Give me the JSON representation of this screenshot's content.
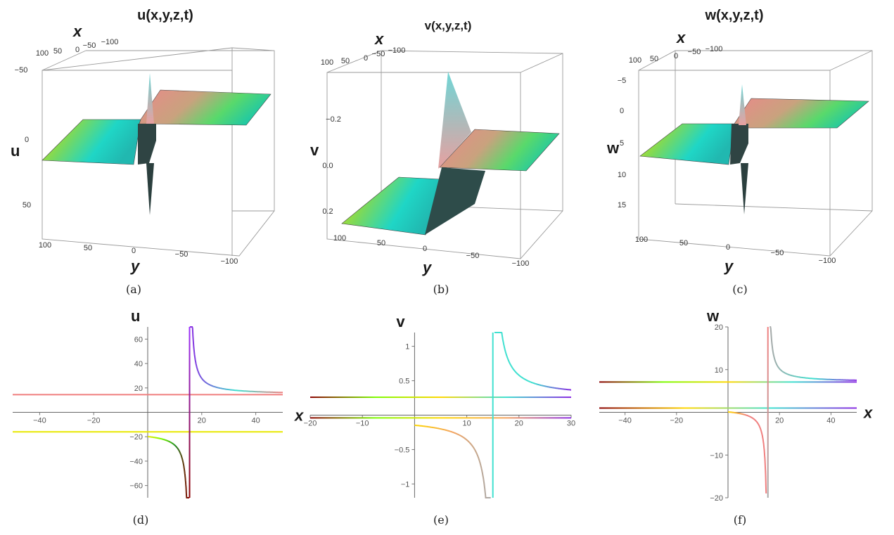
{
  "chart_data": [
    {
      "type": "surface",
      "panel": "(a)",
      "title": "u(x,y,z,t)",
      "xlabel": "x",
      "ylabel": "y",
      "zlabel": "u",
      "x_ticks": [
        "100",
        "50",
        "0",
        "−50",
        "−100"
      ],
      "y_ticks": [
        "100",
        "50",
        "0",
        "−50",
        "−100"
      ],
      "z_ticks": [
        "−50",
        "0",
        "50"
      ],
      "zlim": [
        -60,
        70
      ]
    },
    {
      "type": "surface",
      "panel": "(b)",
      "title": "v(x,y,z,t)",
      "xlabel": "x",
      "ylabel": "y",
      "zlabel": "v",
      "x_ticks": [
        "100",
        "50",
        "0",
        "−50",
        "−100"
      ],
      "y_ticks": [
        "100",
        "50",
        "0",
        "−50",
        "−100"
      ],
      "z_ticks": [
        "−0.2",
        "0.0",
        "0.2"
      ],
      "zlim": [
        -0.35,
        0.3
      ]
    },
    {
      "type": "surface",
      "panel": "(c)",
      "title": "w(x,y,z,t)",
      "xlabel": "x",
      "ylabel": "y",
      "zlabel": "w",
      "x_ticks": [
        "100",
        "50",
        "0",
        "−50",
        "−100"
      ],
      "y_ticks": [
        "100",
        "50",
        "0",
        "−50",
        "−100"
      ],
      "z_ticks": [
        "−5",
        "0",
        "5",
        "10",
        "15"
      ],
      "zlim": [
        -7,
        18
      ]
    },
    {
      "type": "line",
      "panel": "(d)",
      "xlabel": "x",
      "ylabel": "u",
      "xlim": [
        -50,
        50
      ],
      "ylim": [
        -70,
        70
      ],
      "x_ticks": [
        -40,
        -20,
        20,
        40
      ],
      "y_ticks": [
        -60,
        -40,
        -20,
        20,
        40,
        60
      ],
      "asymptote_x": 15.5,
      "series": [
        {
          "kind": "horizontal",
          "value": 14.5,
          "color": "#f08080"
        },
        {
          "kind": "horizontal",
          "value": -16,
          "color": "#e8e800"
        },
        {
          "kind": "rational",
          "a": 15.5,
          "c": 14.5,
          "k": 60,
          "from": 15.6,
          "to": 50,
          "colors": [
            "#8a2be2",
            "#40e0d0",
            "#f08080"
          ]
        },
        {
          "kind": "rational",
          "a": 15.5,
          "c": -16,
          "k": 60,
          "from": 0,
          "to": 15.4,
          "colors": [
            "#e8e800",
            "#7cfc00",
            "#228b22",
            "#8b0000"
          ]
        },
        {
          "kind": "vertical",
          "value": 15.5,
          "colors": [
            "#9b30ff",
            "#8b0000"
          ]
        }
      ]
    },
    {
      "type": "line",
      "panel": "(e)",
      "xlabel": "x",
      "ylabel": "v",
      "xlim": [
        -20,
        30
      ],
      "ylim": [
        -1.2,
        1.2
      ],
      "x_ticks": [
        -20,
        -10,
        10,
        20,
        30
      ],
      "y_ticks": [
        -1.0,
        -0.5,
        0.5,
        1.0
      ],
      "asymptote_x": 15,
      "series": [
        {
          "kind": "horizontal",
          "value": 0.26,
          "colors": [
            "#8b0000",
            "#7cfc00",
            "#ffd700",
            "#40e0d0",
            "#8a2be2"
          ]
        },
        {
          "kind": "horizontal",
          "value": -0.04,
          "colors": [
            "#8b0000",
            "#7cfc00",
            "#ffd700",
            "#f4a460",
            "#8a2be2"
          ]
        },
        {
          "kind": "rational",
          "a": 15,
          "c": 0.26,
          "k": 1.6,
          "from": 15.3,
          "to": 30,
          "colors": [
            "#40e0d0",
            "#40e0d0",
            "#8a2be2"
          ]
        },
        {
          "kind": "rational",
          "a": 15,
          "c": -0.04,
          "k": 1.6,
          "from": 0,
          "to": 14.6,
          "colors": [
            "#ffd700",
            "#f4a460",
            "#a9a9a9"
          ]
        },
        {
          "kind": "vertical",
          "value": 15,
          "colors": [
            "#40e0d0",
            "#40e0d0"
          ]
        }
      ]
    },
    {
      "type": "line",
      "panel": "(f)",
      "xlabel": "x",
      "ylabel": "w",
      "xlim": [
        -50,
        50
      ],
      "ylim": [
        -20,
        20
      ],
      "x_ticks": [
        -40,
        -20,
        20,
        40
      ],
      "y_ticks": [
        -20,
        -10,
        10,
        20
      ],
      "asymptote_x": 15.5,
      "series": [
        {
          "kind": "horizontal",
          "value": 7.1,
          "colors": [
            "#8b0000",
            "#7cfc00",
            "#ffd700",
            "#40e0d0",
            "#8a2be2"
          ]
        },
        {
          "kind": "horizontal",
          "value": 1.0,
          "colors": [
            "#8b0000",
            "#ffd700",
            "#40e0d0",
            "#8a2be2"
          ]
        },
        {
          "kind": "rational",
          "a": 15.5,
          "c": 7.1,
          "k": 14,
          "from": 16.2,
          "to": 50,
          "colors": [
            "#a9a9a9",
            "#40e0d0",
            "#8a2be2"
          ]
        },
        {
          "kind": "rational",
          "a": 15.5,
          "c": 1.0,
          "k": 14,
          "from": 0,
          "to": 14.8,
          "colors": [
            "#ffd700",
            "#f08080",
            "#f08080"
          ]
        },
        {
          "kind": "vertical",
          "value": 15.5,
          "colors": [
            "#f08080",
            "#a9a9a9"
          ]
        }
      ]
    }
  ],
  "captions": [
    "(a)",
    "(b)",
    "(c)",
    "(d)",
    "(e)",
    "(f)"
  ]
}
